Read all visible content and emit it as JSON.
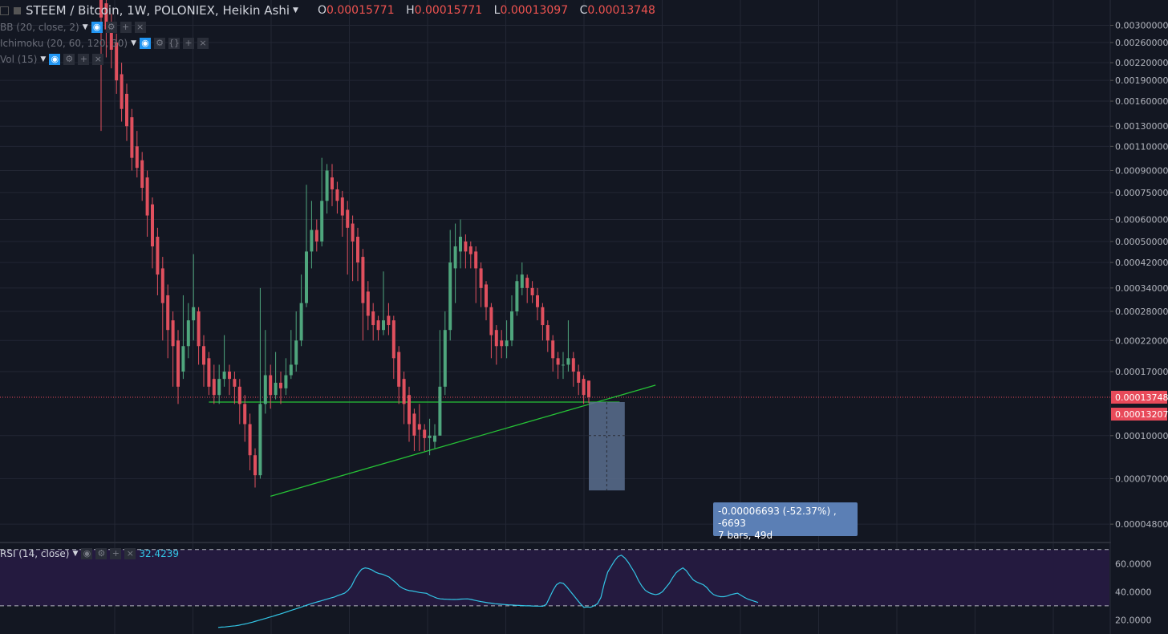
{
  "header": {
    "symbol_title": "STEEM / Bitcoin, 1W, POLONIEX, Heikin Ashi",
    "o_label": "O",
    "o_value": "0.00015771",
    "h_label": "H",
    "h_value": "0.00015771",
    "l_label": "L",
    "l_value": "0.00013097",
    "c_label": "C",
    "c_value": "0.00013748"
  },
  "indicators": {
    "bb": "BB (20, close, 2)",
    "ichimoku": "Ichimoku (20, 60, 120, 30)",
    "vol": "Vol (15)",
    "rsi": "RSI (14, close)",
    "rsi_value": "32.4239"
  },
  "measure": {
    "line1": "-0.00006693 (-52.37%) , -6693",
    "line2": "7 bars, 49d"
  },
  "price_badges": {
    "current": "0.00013748",
    "line": "0.00013207"
  },
  "colors": {
    "background": "#131722",
    "up": "#4fa67d",
    "down": "#e0505e",
    "trendline": "#26c236",
    "rsi_line": "#33c6e6",
    "rsi_band": "#241a3f",
    "badge": "#e84a5a"
  },
  "chart_data": [
    {
      "type": "candlestick",
      "title": "STEEM / Bitcoin, 1W, POLONIEX, Heikin Ashi",
      "scale": "log",
      "y_tick_labels": [
        "0.00300000",
        "0.00260000",
        "0.00220000",
        "0.00190000",
        "0.00160000",
        "0.00130000",
        "0.00110000",
        "0.00090000",
        "0.00075000",
        "0.00060000",
        "0.00050000",
        "0.00042000",
        "0.00034000",
        "0.00028000",
        "0.00022000",
        "0.00017000",
        "0.00010000",
        "0.00007000",
        "0.00004800"
      ],
      "y_ticks": [
        0.003,
        0.0026,
        0.0022,
        0.0019,
        0.0016,
        0.0013,
        0.0011,
        0.0009,
        0.00075,
        0.0006,
        0.0005,
        0.00042,
        0.00034,
        0.00028,
        0.00022,
        0.00017,
        0.0001,
        7e-05,
        4.8e-05
      ],
      "ylim": [
        4.15e-05,
        0.0037
      ],
      "candles": [
        {
          "o": 0.0042,
          "c": 0.0032,
          "h": 0.0042,
          "l": 0.00125
        },
        {
          "o": 0.0036,
          "c": 0.0029,
          "h": 0.004,
          "l": 0.0023
        },
        {
          "o": 0.003,
          "c": 0.00245,
          "h": 0.0033,
          "l": 0.0021
        },
        {
          "o": 0.0026,
          "c": 0.0019,
          "h": 0.0028,
          "l": 0.0017
        },
        {
          "o": 0.002,
          "c": 0.0015,
          "h": 0.0022,
          "l": 0.00135
        },
        {
          "o": 0.0017,
          "c": 0.0013,
          "h": 0.00185,
          "l": 0.00115
        },
        {
          "o": 0.0014,
          "c": 0.001,
          "h": 0.0015,
          "l": 0.0009
        },
        {
          "o": 0.0011,
          "c": 0.00092,
          "h": 0.00125,
          "l": 0.00085
        },
        {
          "o": 0.00098,
          "c": 0.00078,
          "h": 0.00105,
          "l": 0.0007
        },
        {
          "o": 0.00085,
          "c": 0.00062,
          "h": 0.0009,
          "l": 0.00052
        },
        {
          "o": 0.00068,
          "c": 0.00048,
          "h": 0.00072,
          "l": 0.0004
        },
        {
          "o": 0.00052,
          "c": 0.00038,
          "h": 0.00056,
          "l": 0.00032
        },
        {
          "o": 0.0004,
          "c": 0.0003,
          "h": 0.00044,
          "l": 0.00022
        },
        {
          "o": 0.00032,
          "c": 0.00024,
          "h": 0.00035,
          "l": 0.00019
        },
        {
          "o": 0.00026,
          "c": 0.00021,
          "h": 0.00028,
          "l": 0.00015
        },
        {
          "o": 0.00022,
          "c": 0.00015,
          "h": 0.00024,
          "l": 0.00013
        },
        {
          "o": 0.00017,
          "c": 0.00021,
          "h": 0.00032,
          "l": 0.00016
        },
        {
          "o": 0.00021,
          "c": 0.00026,
          "h": 0.0003,
          "l": 0.00019
        },
        {
          "o": 0.00026,
          "c": 0.00029,
          "h": 0.00045,
          "l": 0.00022
        },
        {
          "o": 0.00028,
          "c": 0.00021,
          "h": 0.00029,
          "l": 0.00018
        },
        {
          "o": 0.00021,
          "c": 0.00018,
          "h": 0.00023,
          "l": 0.00015
        },
        {
          "o": 0.00019,
          "c": 0.00015,
          "h": 0.0002,
          "l": 0.00014
        },
        {
          "o": 0.00016,
          "c": 0.00014,
          "h": 0.00018,
          "l": 0.00013
        },
        {
          "o": 0.00014,
          "c": 0.00016,
          "h": 0.00018,
          "l": 0.00013
        },
        {
          "o": 0.00016,
          "c": 0.00017,
          "h": 0.00023,
          "l": 0.00015
        },
        {
          "o": 0.00017,
          "c": 0.00016,
          "h": 0.00018,
          "l": 0.00014
        },
        {
          "o": 0.00016,
          "c": 0.00015,
          "h": 0.00017,
          "l": 0.00013
        },
        {
          "o": 0.00015,
          "c": 0.00013,
          "h": 0.00016,
          "l": 0.00011
        },
        {
          "o": 0.00013,
          "c": 0.00011,
          "h": 0.00014,
          "l": 9.5e-05
        },
        {
          "o": 0.00011,
          "c": 8.5e-05,
          "h": 0.00012,
          "l": 7.5e-05
        },
        {
          "o": 8.5e-05,
          "c": 7.2e-05,
          "h": 9e-05,
          "l": 6.5e-05
        },
        {
          "o": 7.2e-05,
          "c": 0.00013,
          "h": 0.00034,
          "l": 7e-05
        },
        {
          "o": 0.00013,
          "c": 0.000165,
          "h": 0.00024,
          "l": 0.00012
        },
        {
          "o": 0.000165,
          "c": 0.00014,
          "h": 0.00018,
          "l": 0.000125
        },
        {
          "o": 0.00014,
          "c": 0.000155,
          "h": 0.0002,
          "l": 0.000135
        },
        {
          "o": 0.000155,
          "c": 0.000148,
          "h": 0.00017,
          "l": 0.00013
        },
        {
          "o": 0.000148,
          "c": 0.000165,
          "h": 0.00019,
          "l": 0.00014
        },
        {
          "o": 0.000165,
          "c": 0.00018,
          "h": 0.00024,
          "l": 0.00016
        },
        {
          "o": 0.00018,
          "c": 0.00022,
          "h": 0.00028,
          "l": 0.00017
        },
        {
          "o": 0.00022,
          "c": 0.0003,
          "h": 0.00038,
          "l": 0.00021
        },
        {
          "o": 0.0003,
          "c": 0.00046,
          "h": 0.0008,
          "l": 0.00029
        },
        {
          "o": 0.00046,
          "c": 0.00055,
          "h": 0.0007,
          "l": 0.0004
        },
        {
          "o": 0.00055,
          "c": 0.0005,
          "h": 0.0006,
          "l": 0.00046
        },
        {
          "o": 0.0005,
          "c": 0.0007,
          "h": 0.001,
          "l": 0.00048
        },
        {
          "o": 0.0007,
          "c": 0.0009,
          "h": 0.00095,
          "l": 0.00063
        },
        {
          "o": 0.00085,
          "c": 0.00077,
          "h": 0.00095,
          "l": 0.00067
        },
        {
          "o": 0.00077,
          "c": 0.0007,
          "h": 0.00082,
          "l": 0.00063
        },
        {
          "o": 0.00072,
          "c": 0.00062,
          "h": 0.00076,
          "l": 0.00052
        },
        {
          "o": 0.00065,
          "c": 0.00056,
          "h": 0.0007,
          "l": 0.00038
        },
        {
          "o": 0.00058,
          "c": 0.0005,
          "h": 0.00062,
          "l": 0.00036
        },
        {
          "o": 0.00052,
          "c": 0.00042,
          "h": 0.00056,
          "l": 0.00036
        },
        {
          "o": 0.00044,
          "c": 0.0003,
          "h": 0.00047,
          "l": 0.00022
        },
        {
          "o": 0.00033,
          "c": 0.00027,
          "h": 0.00036,
          "l": 0.00024
        },
        {
          "o": 0.00028,
          "c": 0.00025,
          "h": 0.0003,
          "l": 0.00022
        },
        {
          "o": 0.00026,
          "c": 0.00024,
          "h": 0.00027,
          "l": 0.00022
        },
        {
          "o": 0.00024,
          "c": 0.00026,
          "h": 0.00039,
          "l": 0.00023
        },
        {
          "o": 0.00027,
          "c": 0.00025,
          "h": 0.0003,
          "l": 0.00023
        },
        {
          "o": 0.00026,
          "c": 0.00019,
          "h": 0.00027,
          "l": 0.00016
        },
        {
          "o": 0.0002,
          "c": 0.00015,
          "h": 0.00021,
          "l": 0.00013
        },
        {
          "o": 0.00016,
          "c": 0.00013,
          "h": 0.00017,
          "l": 0.00011
        },
        {
          "o": 0.00014,
          "c": 0.00011,
          "h": 0.00015,
          "l": 9.5e-05
        },
        {
          "o": 0.00012,
          "c": 0.0001,
          "h": 0.000125,
          "l": 8.8e-05
        },
        {
          "o": 0.00011,
          "c": 0.000105,
          "h": 0.00013,
          "l": 8.8e-05
        },
        {
          "o": 0.000105,
          "c": 9.8e-05,
          "h": 0.00011,
          "l": 8.8e-05
        },
        {
          "o": 9.8e-05,
          "c": 0.0001,
          "h": 0.000115,
          "l": 8.5e-05
        },
        {
          "o": 9.5e-05,
          "c": 0.0001,
          "h": 0.00011,
          "l": 9e-05
        },
        {
          "o": 0.0001,
          "c": 0.00015,
          "h": 0.00024,
          "l": 0.0001
        },
        {
          "o": 0.00015,
          "c": 0.00024,
          "h": 0.00028,
          "l": 0.00014
        },
        {
          "o": 0.00024,
          "c": 0.00042,
          "h": 0.00055,
          "l": 0.00022
        },
        {
          "o": 0.0004,
          "c": 0.00048,
          "h": 0.00058,
          "l": 0.0003
        },
        {
          "o": 0.00046,
          "c": 0.00052,
          "h": 0.0006,
          "l": 0.0004
        },
        {
          "o": 0.0005,
          "c": 0.00046,
          "h": 0.00053,
          "l": 0.0004
        },
        {
          "o": 0.00048,
          "c": 0.00045,
          "h": 0.0005,
          "l": 0.0004
        },
        {
          "o": 0.00046,
          "c": 0.0004,
          "h": 0.00048,
          "l": 0.0003
        },
        {
          "o": 0.0004,
          "c": 0.00034,
          "h": 0.00042,
          "l": 0.00029
        },
        {
          "o": 0.00035,
          "c": 0.00029,
          "h": 0.00036,
          "l": 0.00026
        },
        {
          "o": 0.00029,
          "c": 0.00023,
          "h": 0.0003,
          "l": 0.00019
        },
        {
          "o": 0.00024,
          "c": 0.00021,
          "h": 0.00025,
          "l": 0.00018
        },
        {
          "o": 0.00022,
          "c": 0.00021,
          "h": 0.00024,
          "l": 0.00019
        },
        {
          "o": 0.00021,
          "c": 0.00022,
          "h": 0.00026,
          "l": 0.00019
        },
        {
          "o": 0.00022,
          "c": 0.00028,
          "h": 0.00032,
          "l": 0.00021
        },
        {
          "o": 0.00028,
          "c": 0.00036,
          "h": 0.00038,
          "l": 0.00027
        },
        {
          "o": 0.00034,
          "c": 0.00038,
          "h": 0.00042,
          "l": 0.00032
        },
        {
          "o": 0.00037,
          "c": 0.00034,
          "h": 0.00038,
          "l": 0.0003
        },
        {
          "o": 0.00034,
          "c": 0.00032,
          "h": 0.00036,
          "l": 0.0003
        },
        {
          "o": 0.00032,
          "c": 0.00029,
          "h": 0.00034,
          "l": 0.00026
        },
        {
          "o": 0.00029,
          "c": 0.00025,
          "h": 0.0003,
          "l": 0.00022
        },
        {
          "o": 0.00025,
          "c": 0.00022,
          "h": 0.00026,
          "l": 0.0002
        },
        {
          "o": 0.00022,
          "c": 0.00019,
          "h": 0.00023,
          "l": 0.00017
        },
        {
          "o": 0.00019,
          "c": 0.00018,
          "h": 0.0002,
          "l": 0.00016
        },
        {
          "o": 0.00018,
          "c": 0.00018,
          "h": 0.0002,
          "l": 0.00016
        },
        {
          "o": 0.00018,
          "c": 0.00019,
          "h": 0.00026,
          "l": 0.00017
        },
        {
          "o": 0.00019,
          "c": 0.00017,
          "h": 0.0002,
          "l": 0.00015
        },
        {
          "o": 0.00017,
          "c": 0.000155,
          "h": 0.00018,
          "l": 0.00014
        },
        {
          "o": 0.00016,
          "c": 0.00014,
          "h": 0.000165,
          "l": 0.00013
        },
        {
          "o": 0.00015771,
          "c": 0.00013748,
          "h": 0.00015771,
          "l": 0.00013097
        }
      ],
      "trendlines": [
        {
          "from": {
            "bar": 21,
            "price": 0.00013207
          },
          "to": {
            "bar": 101,
            "price": 0.00013207
          }
        },
        {
          "from": {
            "bar": 33,
            "price": 6.05e-05
          },
          "to": {
            "bar": 108,
            "price": 0.000152
          }
        }
      ],
      "measurement": {
        "text": "-0.00006693 (-52.37%) , -6693",
        "bars": "7 bars, 49d",
        "start_bar": 95,
        "end_bar": 102,
        "top": 0.00013207,
        "bottom": 6.35e-05
      }
    },
    {
      "type": "line",
      "title": "RSI (14, close)",
      "ylim": [
        10,
        75
      ],
      "y_tick_labels": [
        "60.0000",
        "40.0000",
        "20.0000"
      ],
      "y_ticks": [
        60,
        40,
        20
      ],
      "bands": [
        70,
        30
      ],
      "values": [
        14.7,
        14.9,
        15.0,
        15.3,
        15.6,
        15.8,
        16.2,
        16.7,
        17.2,
        17.8,
        18.4,
        19.1,
        19.8,
        20.5,
        21.2,
        21.9,
        22.6,
        23.4,
        24.1,
        24.9,
        25.7,
        26.5,
        27.3,
        28.1,
        28.9,
        29.7,
        30.5,
        31.3,
        32.1,
        32.8,
        33.5,
        34.2,
        34.9,
        35.6,
        36.3,
        37.3,
        38.1,
        39.0,
        41.0,
        44.0,
        49.0,
        53.0,
        56.0,
        57.0,
        56.5,
        55.5,
        54.0,
        53.0,
        52.5,
        51.5,
        50.5,
        48.5,
        46.5,
        44.0,
        42.5,
        41.5,
        40.8,
        40.5,
        40.0,
        39.5,
        39.2,
        38.9,
        37.5,
        36.5,
        35.5,
        35.0,
        34.8,
        34.7,
        34.6,
        34.5,
        34.6,
        34.8,
        34.9,
        35.0,
        34.6,
        34.0,
        33.5,
        33.0,
        32.6,
        32.2,
        31.9,
        31.5,
        31.3,
        31.1,
        30.9,
        30.7,
        30.6,
        30.4,
        30.3,
        30.2,
        30.0,
        30.0,
        29.9,
        29.8,
        29.8,
        29.7,
        31.0,
        36.0,
        41.0,
        45.0,
        46.5,
        46.0,
        43.5,
        40.5,
        37.5,
        34.5,
        31.5,
        29.0,
        29.2,
        29.0,
        30.0,
        31.5,
        36.0,
        46.0,
        54.0,
        58.0,
        62.0,
        65.0,
        66.0,
        64.0,
        61.0,
        57.0,
        53.0,
        48.0,
        44.0,
        41.0,
        39.5,
        38.5,
        38.0,
        38.5,
        40.0,
        43.0,
        46.0,
        50.0,
        53.5,
        55.5,
        57.0,
        55.0,
        51.5,
        48.5,
        47.0,
        46.0,
        45.0,
        43.0,
        40.0,
        38.0,
        37.0,
        36.5,
        36.5,
        37.0,
        38.0,
        38.5,
        39.0,
        37.5,
        36.0,
        34.8,
        34.0,
        33.2,
        32.4
      ]
    }
  ]
}
